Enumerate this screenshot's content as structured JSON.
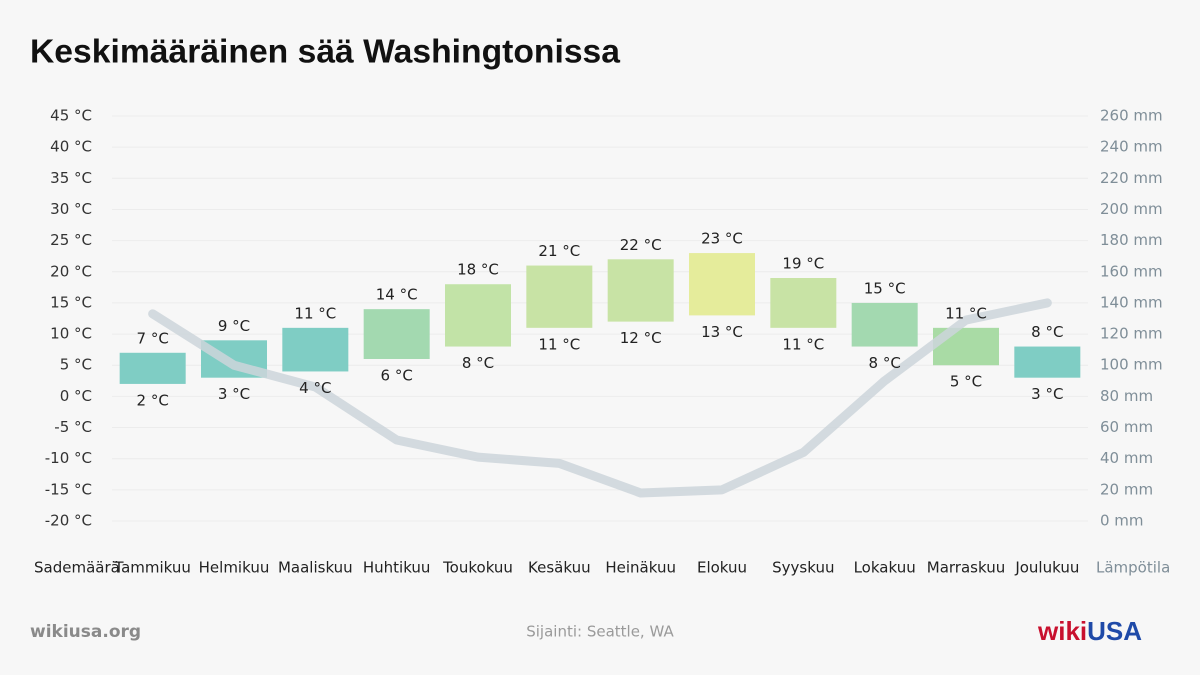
{
  "chart_data": {
    "type": "weather",
    "title": "Keskimääräinen sää Washingtonissa",
    "categories": [
      "Tammikuu",
      "Helmikuu",
      "Maaliskuu",
      "Huhtikuu",
      "Toukokuu",
      "Kesäkuu",
      "Heinäkuu",
      "Elokuu",
      "Syyskuu",
      "Lokakuu",
      "Marraskuu",
      "Joulukuu"
    ],
    "precipitation_label": "Sademäärä",
    "temperature_label": "Lämpötila",
    "temperature": {
      "low": [
        2,
        3,
        4,
        6,
        8,
        11,
        12,
        13,
        11,
        8,
        5,
        3
      ],
      "high": [
        7,
        9,
        11,
        14,
        18,
        21,
        22,
        23,
        19,
        15,
        11,
        8
      ],
      "low_labels": [
        "2 °C",
        "3 °C",
        "4 °C",
        "6 °C",
        "8 °C",
        "11 °C",
        "12 °C",
        "13 °C",
        "11 °C",
        "8 °C",
        "5 °C",
        "3 °C"
      ],
      "high_labels": [
        "7 °C",
        "9 °C",
        "11 °C",
        "14 °C",
        "18 °C",
        "21 °C",
        "22 °C",
        "23 °C",
        "19 °C",
        "15 °C",
        "11 °C",
        "8 °C"
      ],
      "colors": [
        "#7fcdc4",
        "#7fcdc4",
        "#7fcdc4",
        "#a3d9b0",
        "#c2e3a7",
        "#c8e3a5",
        "#c8e3a5",
        "#e5ec9b",
        "#c8e3a5",
        "#a3d9b0",
        "#a9dba5",
        "#7fcdc4"
      ]
    },
    "precipitation": {
      "axis": "y2",
      "color": "#ccd5da",
      "values": [
        133,
        100,
        86,
        52,
        41,
        37,
        18,
        20,
        44,
        90,
        129,
        140
      ]
    },
    "ylim": [
      -20,
      45
    ],
    "yticks": [
      {
        "value": -20,
        "label": "-20 °C"
      },
      {
        "value": -15,
        "label": "-15 °C"
      },
      {
        "value": -10,
        "label": "-10 °C"
      },
      {
        "value": -5,
        "label": "-5 °C"
      },
      {
        "value": 0,
        "label": "0 °C"
      },
      {
        "value": 5,
        "label": "5 °C"
      },
      {
        "value": 10,
        "label": "10 °C"
      },
      {
        "value": 15,
        "label": "15 °C"
      },
      {
        "value": 20,
        "label": "20 °C"
      },
      {
        "value": 25,
        "label": "25 °C"
      },
      {
        "value": 30,
        "label": "30 °C"
      },
      {
        "value": 35,
        "label": "35 °C"
      },
      {
        "value": 40,
        "label": "40 °C"
      },
      {
        "value": 45,
        "label": "45 °C"
      }
    ],
    "y2lim": [
      0,
      260
    ],
    "y2ticks": [
      {
        "value": 0,
        "label": "0 mm"
      },
      {
        "value": 20,
        "label": "20 mm"
      },
      {
        "value": 40,
        "label": "40 mm"
      },
      {
        "value": 60,
        "label": "60 mm"
      },
      {
        "value": 80,
        "label": "80 mm"
      },
      {
        "value": 100,
        "label": "100 mm"
      },
      {
        "value": 120,
        "label": "120 mm"
      },
      {
        "value": 140,
        "label": "140 mm"
      },
      {
        "value": 160,
        "label": "160 mm"
      },
      {
        "value": 180,
        "label": "180 mm"
      },
      {
        "value": 200,
        "label": "200 mm"
      },
      {
        "value": 220,
        "label": "220 mm"
      },
      {
        "value": 240,
        "label": "240 mm"
      },
      {
        "value": 260,
        "label": "260 mm"
      }
    ],
    "grid": true,
    "source": "wikiusa.org",
    "location": "Sijainti: Seattle, WA",
    "logo": {
      "first": "wiki",
      "second": "USA"
    }
  }
}
